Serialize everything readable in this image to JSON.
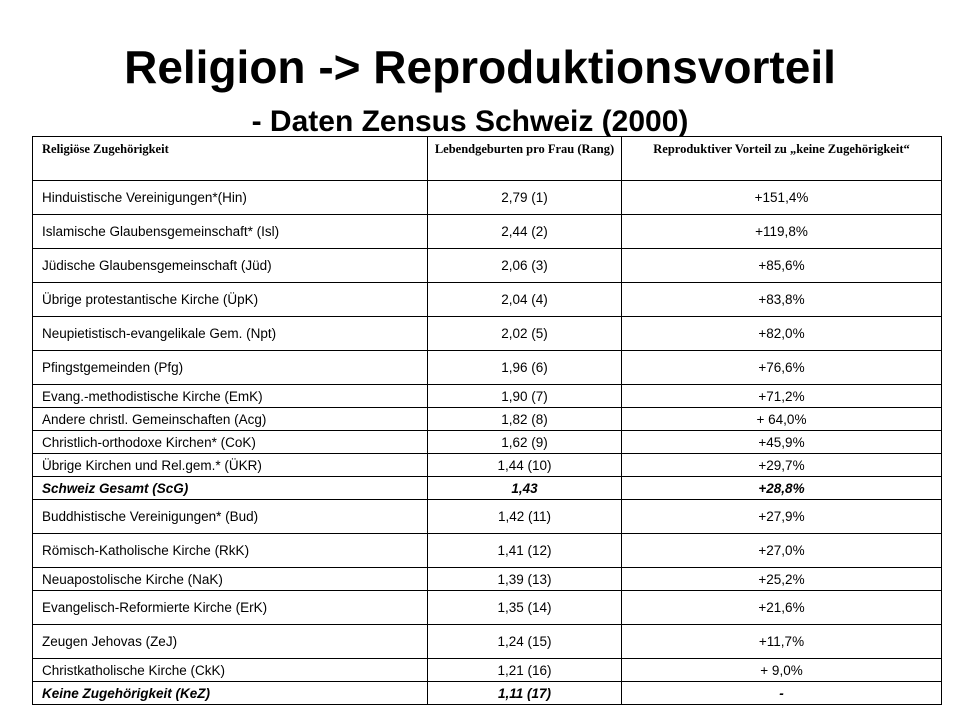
{
  "title": "Religion -> Reproduktionsvorteil",
  "subtitle": "- Daten Zensus Schweiz (2000)",
  "table": {
    "headers": [
      "Religiöse Zugehörigkeit",
      "Lebendgeburten pro Frau (Rang)",
      "Reproduktiver Vorteil zu „keine Zugehörigkeit“"
    ],
    "rows": [
      {
        "group": "Hinduistische Vereinigungen*(Hin)",
        "births": "2,79 (1)",
        "advantage": "+151,4%",
        "size": "tall",
        "emphasis": false
      },
      {
        "group": "Islamische Glaubensgemeinschaft* (Isl)",
        "births": "2,44 (2)",
        "advantage": "+119,8%",
        "size": "tall",
        "emphasis": false
      },
      {
        "group": "Jüdische Glaubensgemeinschaft (Jüd)",
        "births": "2,06 (3)",
        "advantage": "+85,6%",
        "size": "tall",
        "emphasis": false
      },
      {
        "group": "Übrige protestantische Kirche (ÜpK)",
        "births": "2,04 (4)",
        "advantage": "+83,8%",
        "size": "tall",
        "emphasis": false
      },
      {
        "group": "Neupietistisch-evangelikale Gem. (Npt)",
        "births": "2,02 (5)",
        "advantage": "+82,0%",
        "size": "tall",
        "emphasis": false
      },
      {
        "group": "Pfingstgemeinden (Pfg)",
        "births": "1,96 (6)",
        "advantage": "+76,6%",
        "size": "tall",
        "emphasis": false
      },
      {
        "group": "Evang.-methodistische Kirche (EmK)",
        "births": "1,90 (7)",
        "advantage": "+71,2%",
        "size": "short",
        "emphasis": false
      },
      {
        "group": "Andere christl. Gemeinschaften (Acg)",
        "births": "1,82 (8)",
        "advantage": "+ 64,0%",
        "size": "short",
        "emphasis": false
      },
      {
        "group": "Christlich-orthodoxe Kirchen* (CoK)",
        "births": "1,62 (9)",
        "advantage": "+45,9%",
        "size": "short",
        "emphasis": false
      },
      {
        "group": "Übrige Kirchen und Rel.gem.* (ÜKR)",
        "births": "1,44 (10)",
        "advantage": "+29,7%",
        "size": "short",
        "emphasis": false
      },
      {
        "group": "Schweiz Gesamt (ScG)",
        "births": "1,43",
        "advantage": "+28,8%",
        "size": "short",
        "emphasis": true
      },
      {
        "group": "Buddhistische Vereinigungen* (Bud)",
        "births": "1,42 (11)",
        "advantage": "+27,9%",
        "size": "tall",
        "emphasis": false
      },
      {
        "group": "Römisch-Katholische Kirche (RkK)",
        "births": "1,41 (12)",
        "advantage": "+27,0%",
        "size": "tall",
        "emphasis": false
      },
      {
        "group": "Neuapostolische Kirche (NaK)",
        "births": "1,39 (13)",
        "advantage": "+25,2%",
        "size": "short",
        "emphasis": false
      },
      {
        "group": "Evangelisch-Reformierte Kirche (ErK)",
        "births": "1,35 (14)",
        "advantage": "+21,6%",
        "size": "tall",
        "emphasis": false
      },
      {
        "group": "Zeugen Jehovas (ZeJ)",
        "births": "1,24 (15)",
        "advantage": "+11,7%",
        "size": "tall",
        "emphasis": false
      },
      {
        "group": "Christkatholische Kirche (CkK)",
        "births": "1,21 (16)",
        "advantage": "+ 9,0%",
        "size": "short",
        "emphasis": false
      },
      {
        "group": "Keine Zugehörigkeit (KeZ)",
        "births": "1,11 (17)",
        "advantage": "-",
        "size": "short",
        "emphasis": true
      }
    ]
  }
}
